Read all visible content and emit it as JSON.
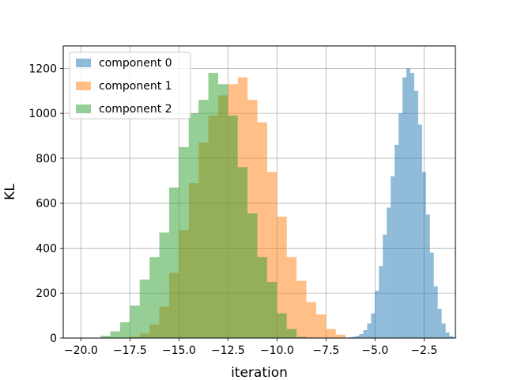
{
  "chart_data": {
    "type": "bar",
    "subtype": "histogram",
    "xlabel": "iteration",
    "ylabel": "KL",
    "xlim": [
      -20.9,
      -0.9
    ],
    "ylim": [
      0,
      1300
    ],
    "xticks": [
      -20.0,
      -17.5,
      -15.0,
      -12.5,
      -10.0,
      -7.5,
      -5.0,
      -2.5
    ],
    "xtick_labels": [
      "−20.0",
      "−17.5",
      "−15.0",
      "−12.5",
      "−10.0",
      "−7.5",
      "−5.0",
      "−2.5"
    ],
    "yticks": [
      0,
      200,
      400,
      600,
      800,
      1000,
      1200
    ],
    "ytick_labels": [
      "0",
      "200",
      "400",
      "600",
      "800",
      "1000",
      "1200"
    ],
    "grid": true,
    "legend_position": "upper-left",
    "bar_alpha": 0.5,
    "series": [
      {
        "name": "component 0",
        "color": "#1f77b4",
        "bin_start": -6.6,
        "bin_width": 0.2,
        "values": [
          2,
          3,
          5,
          10,
          18,
          35,
          65,
          110,
          210,
          320,
          460,
          580,
          720,
          860,
          1000,
          1160,
          1200,
          1180,
          1100,
          950,
          740,
          550,
          380,
          230,
          130,
          65,
          25,
          8,
          2
        ]
      },
      {
        "name": "component 1",
        "color": "#ff7f0e",
        "bin_start": -17.5,
        "bin_width": 0.5,
        "values": [
          5,
          20,
          60,
          140,
          290,
          480,
          690,
          870,
          990,
          1080,
          1130,
          1160,
          1060,
          960,
          740,
          540,
          360,
          255,
          160,
          105,
          40,
          15
        ]
      },
      {
        "name": "component 2",
        "color": "#2ca02c",
        "bin_start": -19.0,
        "bin_width": 0.5,
        "values": [
          10,
          30,
          70,
          145,
          260,
          360,
          470,
          670,
          850,
          1000,
          1060,
          1180,
          1130,
          990,
          760,
          555,
          360,
          250,
          110,
          40,
          5
        ]
      }
    ]
  }
}
